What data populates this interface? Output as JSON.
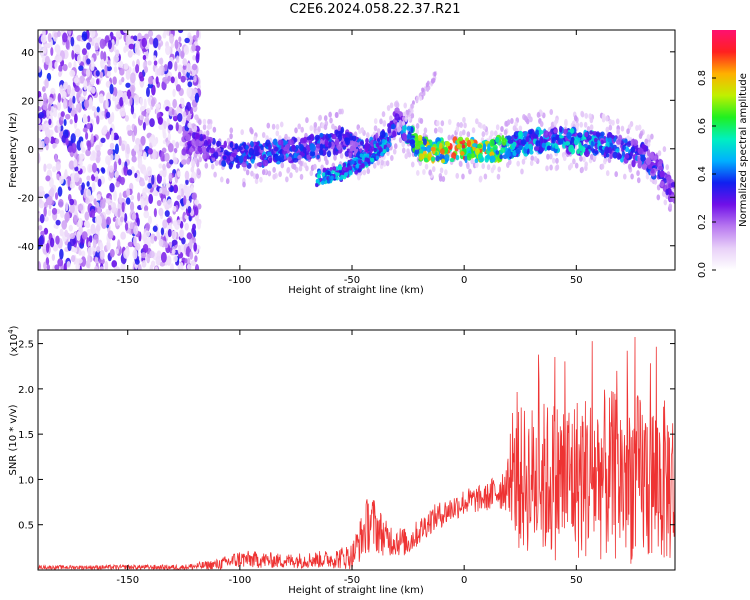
{
  "title": "C2E6.2024.058.22.37.R21",
  "chart_data": [
    {
      "type": "heatmap",
      "xlabel": "Height of straight line (km)",
      "ylabel": "Frequency (Hz)",
      "xlim": [
        -190,
        94
      ],
      "ylim": [
        -50,
        49
      ],
      "xticks": [
        -150,
        -100,
        -50,
        0,
        50
      ],
      "yticks": [
        -40,
        -20,
        0,
        20,
        40
      ],
      "colorbar": {
        "label": "Normalized spectral amplitude",
        "range": [
          0.0,
          1.0
        ],
        "ticks": [
          "0.0",
          "0.2",
          "0.4",
          "0.6",
          "0.8"
        ],
        "colors": [
          "#ffffff",
          "#e8d0f8",
          "#b878f0",
          "#7010e8",
          "#1020f0",
          "#00b0ff",
          "#00f0c0",
          "#20f020",
          "#c0f000",
          "#ffb000",
          "#ff2020",
          "#ff1070"
        ]
      },
      "ridge": [
        {
          "x": -120,
          "f": 3,
          "amp": 0.3
        },
        {
          "x": -110,
          "f": -2,
          "amp": 0.35
        },
        {
          "x": -100,
          "f": -3,
          "amp": 0.4
        },
        {
          "x": -90,
          "f": -2,
          "amp": 0.45
        },
        {
          "x": -80,
          "f": -1,
          "amp": 0.45
        },
        {
          "x": -70,
          "f": 0,
          "amp": 0.4
        },
        {
          "x": -60,
          "f": 2,
          "amp": 0.4
        },
        {
          "x": -55,
          "f": 4,
          "amp": 0.35
        },
        {
          "x": -45,
          "f": -2,
          "amp": 0.4
        },
        {
          "x": -35,
          "f": 3,
          "amp": 0.45
        },
        {
          "x": -30,
          "f": 12,
          "amp": 0.35
        },
        {
          "x": -20,
          "f": 0,
          "amp": 0.8
        },
        {
          "x": -10,
          "f": -1,
          "amp": 0.85
        },
        {
          "x": 0,
          "f": 0,
          "amp": 0.9
        },
        {
          "x": 10,
          "f": -1,
          "amp": 0.85
        },
        {
          "x": 20,
          "f": 1,
          "amp": 0.6
        },
        {
          "x": 30,
          "f": 3,
          "amp": 0.5
        },
        {
          "x": 40,
          "f": 4,
          "amp": 0.5
        },
        {
          "x": 50,
          "f": 3,
          "amp": 0.55
        },
        {
          "x": 60,
          "f": 2,
          "amp": 0.5
        },
        {
          "x": 70,
          "f": 0,
          "amp": 0.45
        },
        {
          "x": 80,
          "f": -3,
          "amp": 0.4
        },
        {
          "x": 88,
          "f": -10,
          "amp": 0.35
        },
        {
          "x": 94,
          "f": -20,
          "amp": 0.3
        }
      ],
      "lower_branch": [
        {
          "x": -65,
          "f": -12
        },
        {
          "x": -55,
          "f": -10
        },
        {
          "x": -48,
          "f": -7
        },
        {
          "x": -40,
          "f": -2
        },
        {
          "x": -35,
          "f": 2
        }
      ]
    },
    {
      "type": "line",
      "xlabel": "Height of straight line (km)",
      "ylabel": "SNR (10 * v/v)",
      "multiplier": "(x10",
      "multiplier_exp": "4",
      "xlim": [
        -190,
        94
      ],
      "ylim": [
        0,
        2.65
      ],
      "xticks": [
        -150,
        -100,
        -50,
        0,
        50
      ],
      "yticks": [
        0.5,
        1.0,
        1.5,
        2.0,
        2.5
      ],
      "ytick_labels": [
        "0.5",
        "1.0",
        "1.5",
        "2.0",
        "2.5"
      ],
      "color": "#ee3333",
      "envelope": [
        {
          "x": -190,
          "base": 0.03,
          "spread": 0.02
        },
        {
          "x": -125,
          "base": 0.03,
          "spread": 0.03
        },
        {
          "x": -110,
          "base": 0.06,
          "spread": 0.06
        },
        {
          "x": -100,
          "base": 0.12,
          "spread": 0.1
        },
        {
          "x": -80,
          "base": 0.1,
          "spread": 0.08
        },
        {
          "x": -60,
          "base": 0.12,
          "spread": 0.1
        },
        {
          "x": -50,
          "base": 0.15,
          "spread": 0.15
        },
        {
          "x": -42,
          "base": 0.55,
          "spread": 0.35
        },
        {
          "x": -35,
          "base": 0.35,
          "spread": 0.2
        },
        {
          "x": -25,
          "base": 0.3,
          "spread": 0.15
        },
        {
          "x": -15,
          "base": 0.55,
          "spread": 0.15
        },
        {
          "x": 0,
          "base": 0.75,
          "spread": 0.15
        },
        {
          "x": 10,
          "base": 0.8,
          "spread": 0.15
        },
        {
          "x": 20,
          "base": 0.95,
          "spread": 0.3
        },
        {
          "x": 24,
          "base": 1.0,
          "spread": 0.8
        },
        {
          "x": 40,
          "base": 1.0,
          "spread": 0.9
        },
        {
          "x": 60,
          "base": 1.05,
          "spread": 0.95
        },
        {
          "x": 80,
          "base": 1.0,
          "spread": 0.95
        },
        {
          "x": 94,
          "base": 0.95,
          "spread": 0.9
        }
      ]
    }
  ]
}
